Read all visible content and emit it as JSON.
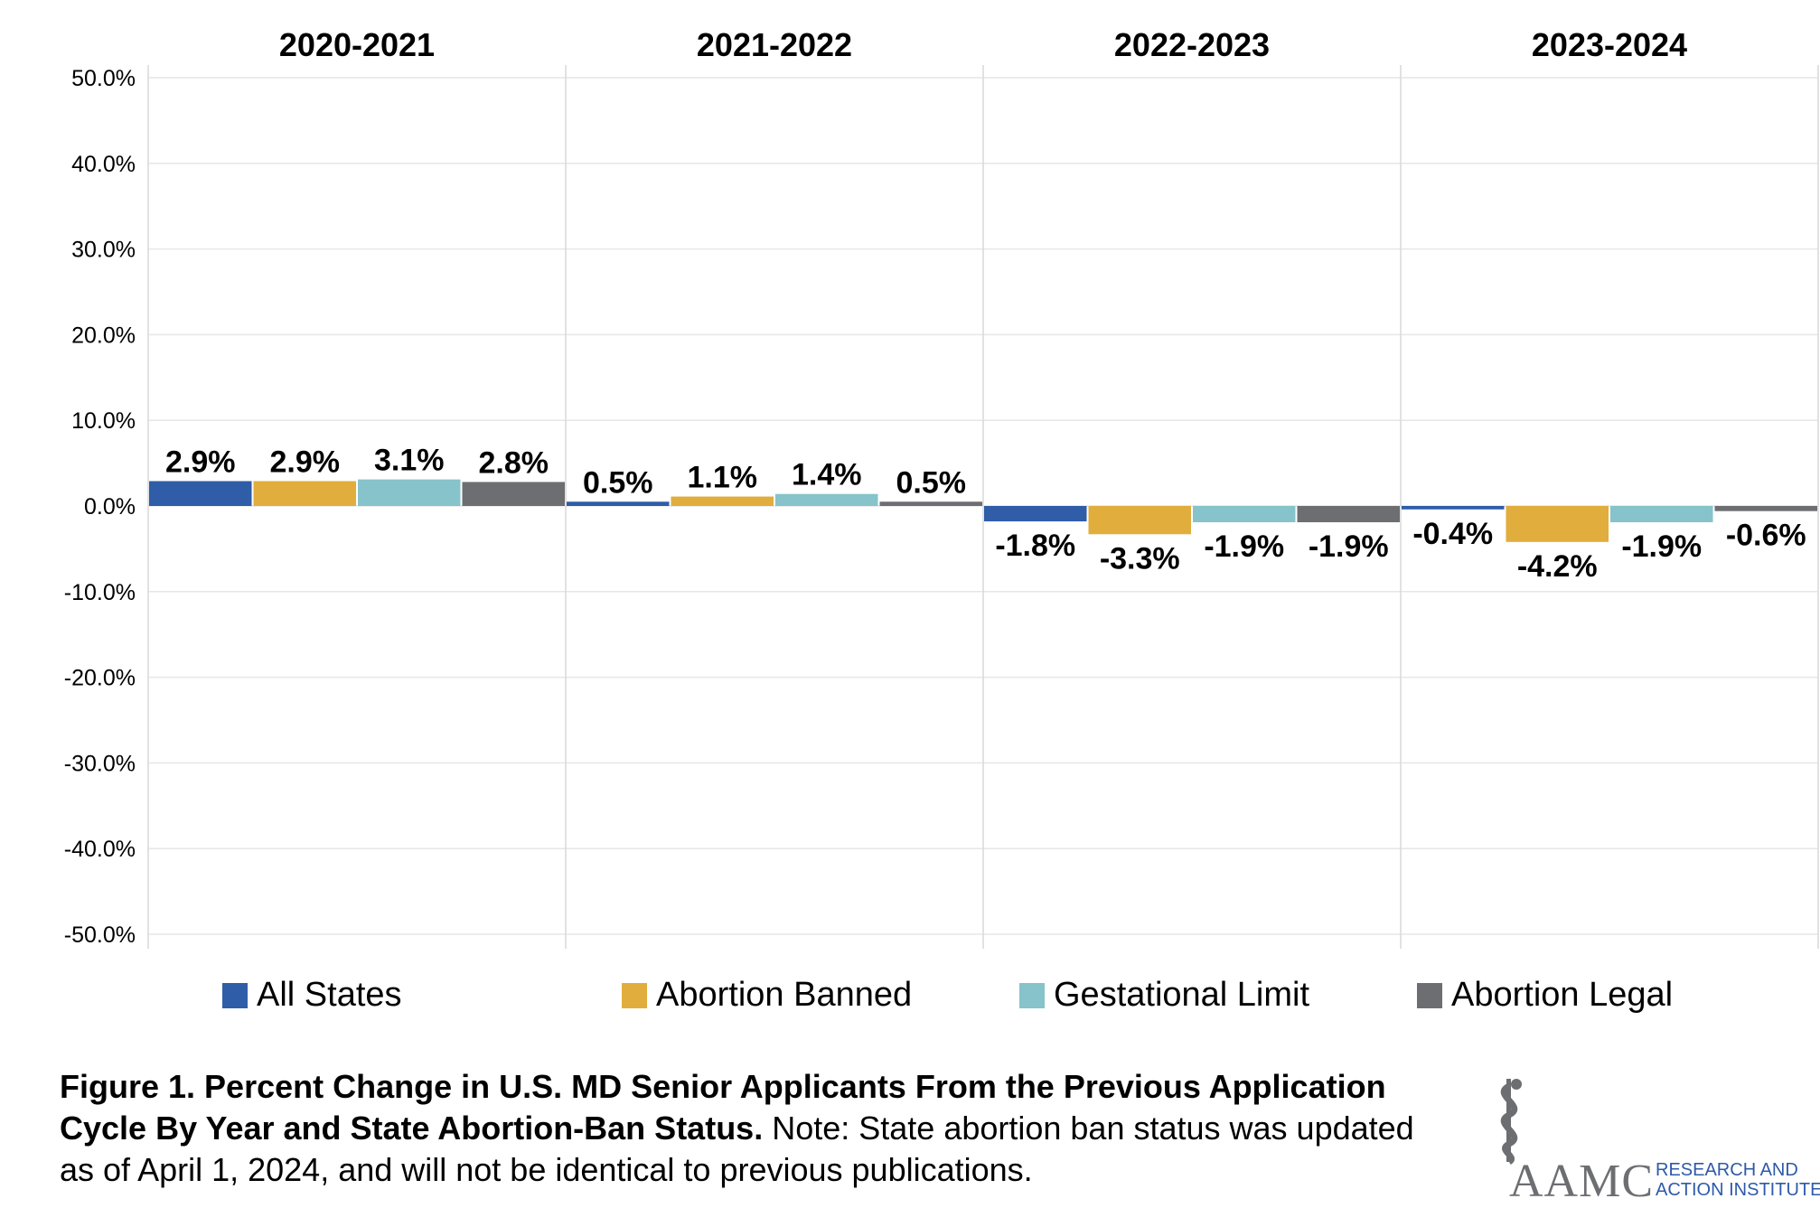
{
  "chart_data": {
    "type": "bar",
    "panels": [
      "2020-2021",
      "2021-2022",
      "2022-2023",
      "2023-2024"
    ],
    "series": [
      {
        "name": "All States",
        "color": "#2f5da8",
        "values": [
          2.9,
          0.5,
          -1.8,
          -0.4
        ]
      },
      {
        "name": "Abortion Banned",
        "color": "#e1ad3d",
        "values": [
          2.9,
          1.1,
          -3.3,
          -4.2
        ]
      },
      {
        "name": "Gestational Limit",
        "color": "#86c3ca",
        "values": [
          3.1,
          1.4,
          -1.9,
          -1.9
        ]
      },
      {
        "name": "Abortion Legal",
        "color": "#6d6e71",
        "values": [
          2.8,
          0.5,
          -1.9,
          -0.6
        ]
      }
    ],
    "data_labels": [
      [
        "2.9%",
        "2.9%",
        "3.1%",
        "2.8%"
      ],
      [
        "0.5%",
        "1.1%",
        "1.4%",
        "0.5%"
      ],
      [
        "-1.8%",
        "-3.3%",
        "-1.9%",
        "-1.9%"
      ],
      [
        "-0.4%",
        "-4.2%",
        "-1.9%",
        "-0.6%"
      ]
    ],
    "ylim": [
      -50,
      50
    ],
    "yticks": [
      "50.0%",
      "40.0%",
      "30.0%",
      "20.0%",
      "10.0%",
      "0.0%",
      "-10.0%",
      "-20.0%",
      "-30.0%",
      "-40.0%",
      "-50.0%"
    ],
    "ytick_values": [
      50,
      40,
      30,
      20,
      10,
      0,
      -10,
      -20,
      -30,
      -40,
      -50
    ],
    "grid": true,
    "legend_position": "bottom"
  },
  "legend": {
    "items": [
      {
        "label": "All States",
        "color": "#2f5da8"
      },
      {
        "label": "Abortion Banned",
        "color": "#e1ad3d"
      },
      {
        "label": "Gestational Limit",
        "color": "#86c3ca"
      },
      {
        "label": "Abortion Legal",
        "color": "#6d6e71"
      }
    ]
  },
  "caption": {
    "bold": "Figure 1. Percent Change in U.S. MD Senior Applicants From the Previous Application Cycle By Year and State Abortion-Ban Status.",
    "normal": " Note: State abortion ban status was updated as of April 1, 2024, and will not be identical to previous publications."
  },
  "logo": {
    "wordmark": "AAMC",
    "line1": "RESEARCH AND",
    "line2": "ACTION INSTITUTE"
  }
}
